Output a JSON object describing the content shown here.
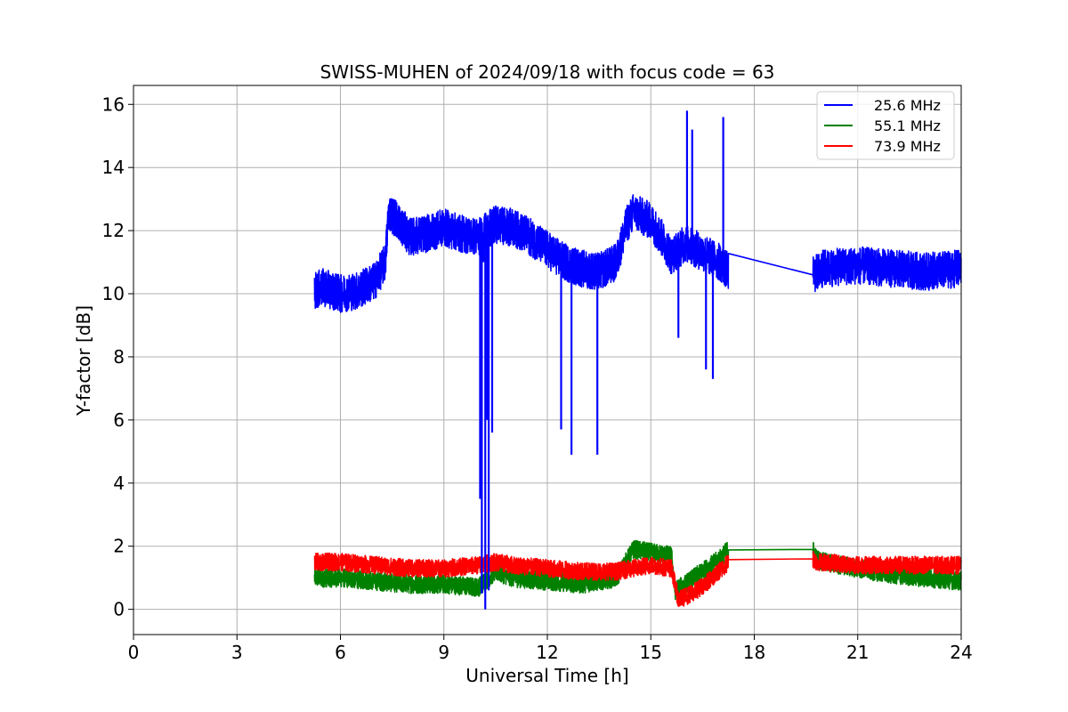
{
  "chart_data": {
    "type": "line",
    "title": "SWISS-MUHEN of 2024/09/18 with focus code = 63",
    "xlabel": "Universal Time [h]",
    "ylabel": "Y-factor [dB]",
    "xlim": [
      0,
      24
    ],
    "ylim": [
      -0.8,
      16.6
    ],
    "xticks": [
      0,
      3,
      6,
      9,
      12,
      15,
      18,
      21,
      24
    ],
    "yticks": [
      0,
      2,
      4,
      6,
      8,
      10,
      12,
      14,
      16
    ],
    "grid": true,
    "legend_position": "top-right",
    "series": [
      {
        "name": "25.6 MHz",
        "color": "#0000ff",
        "noise": 0.6,
        "x": [
          5.25,
          5.5,
          6.0,
          6.5,
          7.0,
          7.3,
          7.4,
          7.6,
          8.0,
          8.5,
          9.0,
          9.5,
          10.0,
          10.5,
          11.0,
          11.5,
          12.0,
          12.5,
          13.0,
          13.5,
          14.0,
          14.3,
          14.5,
          15.0,
          15.3,
          15.6,
          16.0,
          16.5,
          17.0,
          17.25,
          19.7,
          20.0,
          21.0,
          22.0,
          23.0,
          24.0
        ],
        "y": [
          10.1,
          10.2,
          10.0,
          10.1,
          10.4,
          11.0,
          12.6,
          12.4,
          11.8,
          11.9,
          12.1,
          11.9,
          11.8,
          12.2,
          12.1,
          11.8,
          11.4,
          11.0,
          10.8,
          10.7,
          11.0,
          12.2,
          12.6,
          12.3,
          11.8,
          11.2,
          11.6,
          11.3,
          11.0,
          10.7,
          10.6,
          10.8,
          10.9,
          10.8,
          10.7,
          10.8
        ]
      },
      {
        "name": "55.1 MHz",
        "color": "#008000",
        "noise": 0.3,
        "x": [
          5.25,
          6.0,
          7.0,
          8.0,
          9.0,
          10.0,
          10.5,
          11.0,
          12.0,
          13.0,
          14.0,
          14.5,
          15.0,
          15.6,
          15.7,
          16.0,
          16.5,
          17.0,
          17.25,
          19.7,
          19.8,
          20.0,
          21.0,
          22.0,
          23.0,
          24.0
        ],
        "y": [
          1.0,
          1.0,
          0.9,
          0.8,
          0.8,
          0.7,
          1.2,
          1.0,
          0.9,
          0.8,
          1.0,
          1.9,
          1.8,
          1.7,
          0.6,
          0.8,
          1.2,
          1.6,
          1.9,
          1.9,
          1.6,
          1.5,
          1.3,
          1.1,
          1.0,
          0.9
        ]
      },
      {
        "name": "73.9 MHz",
        "color": "#ff0000",
        "noise": 0.28,
        "x": [
          5.25,
          6.0,
          7.0,
          8.0,
          9.0,
          10.0,
          10.5,
          11.0,
          12.0,
          13.0,
          14.0,
          15.0,
          15.6,
          15.8,
          16.2,
          16.8,
          17.25,
          19.7,
          19.8,
          20.0,
          21.0,
          22.0,
          23.0,
          24.0
        ],
        "y": [
          1.5,
          1.5,
          1.4,
          1.3,
          1.3,
          1.4,
          1.5,
          1.4,
          1.3,
          1.2,
          1.2,
          1.4,
          1.3,
          0.3,
          0.5,
          1.0,
          1.5,
          1.6,
          1.5,
          1.5,
          1.4,
          1.4,
          1.4,
          1.4
        ]
      }
    ],
    "annotations": [
      {
        "series": 0,
        "x": [
          10.05,
          10.1,
          10.15,
          10.2,
          10.25,
          10.3,
          10.35,
          10.4
        ],
        "y": [
          3.5,
          0.5,
          11.0,
          0.0,
          6.0,
          0.6,
          11.5,
          5.6
        ]
      },
      {
        "series": 0,
        "x": [
          12.4,
          12.45,
          12.7,
          13.45
        ],
        "y": [
          5.7,
          10.5,
          4.9,
          4.9
        ]
      },
      {
        "series": 0,
        "x": [
          15.8,
          16.05,
          16.2,
          16.6,
          16.8,
          17.1
        ],
        "y": [
          8.6,
          15.8,
          15.2,
          7.6,
          7.3,
          15.6
        ]
      }
    ]
  }
}
